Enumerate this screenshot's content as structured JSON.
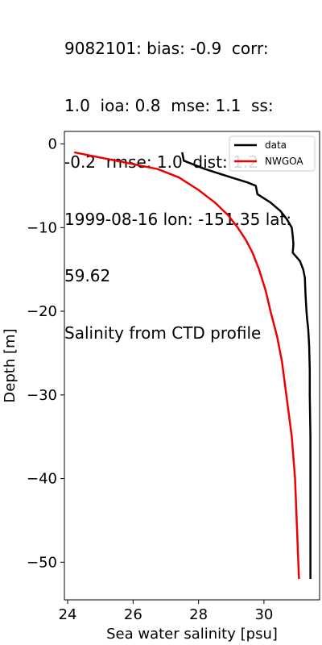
{
  "title_lines": [
    "9082101: bias: -0.9  corr:",
    "1.0  ioa: 0.8  mse: 1.1  ss:",
    "-0.2  rmse: 1.0  dist: 1.2",
    "1999-08-16 lon: -151.35 lat:",
    "59.62",
    "Salinity from CTD profile"
  ],
  "chart_data": {
    "type": "line",
    "title": "9082101: bias: -0.9  corr: 1.0  ioa: 0.8  mse: 1.1  ss: -0.2  rmse: 1.0  dist: 1.2 1999-08-16 lon: -151.35 lat: 59.62 Salinity from CTD profile",
    "xlabel": "Sea water salinity [psu]",
    "ylabel": "Depth [m]",
    "xlim": [
      23.9,
      31.7
    ],
    "ylim": [
      -54.5,
      1.5
    ],
    "xticks": [
      24,
      26,
      28,
      30
    ],
    "xtick_labels": [
      "24",
      "26",
      "28",
      "30"
    ],
    "yticks": [
      0,
      -10,
      -20,
      -30,
      -40,
      -50
    ],
    "ytick_labels": [
      "0",
      "−10",
      "−20",
      "−30",
      "−40",
      "−50"
    ],
    "grid": false,
    "legend": "top-right",
    "series": [
      {
        "name": "data",
        "color": "#000000",
        "points": [
          [
            27.5,
            -1
          ],
          [
            27.55,
            -2
          ],
          [
            28.2,
            -3
          ],
          [
            29.0,
            -4
          ],
          [
            29.5,
            -4.6
          ],
          [
            29.75,
            -5
          ],
          [
            29.8,
            -6
          ],
          [
            30.2,
            -7
          ],
          [
            30.5,
            -8
          ],
          [
            30.7,
            -9
          ],
          [
            30.85,
            -10
          ],
          [
            30.88,
            -11
          ],
          [
            30.9,
            -12
          ],
          [
            30.88,
            -13
          ],
          [
            31.1,
            -14
          ],
          [
            31.2,
            -15
          ],
          [
            31.25,
            -16
          ],
          [
            31.27,
            -18
          ],
          [
            31.3,
            -20
          ],
          [
            31.32,
            -21
          ],
          [
            31.35,
            -22
          ],
          [
            31.38,
            -24
          ],
          [
            31.4,
            -27
          ],
          [
            31.4,
            -30
          ],
          [
            31.42,
            -35
          ],
          [
            31.42,
            -40
          ],
          [
            31.42,
            -45
          ],
          [
            31.42,
            -50
          ],
          [
            31.42,
            -52
          ]
        ]
      },
      {
        "name": "NWGOA",
        "color": "#ee0000",
        "points": [
          [
            24.2,
            -1
          ],
          [
            26.75,
            -3
          ],
          [
            27.4,
            -4
          ],
          [
            28.0,
            -5.5
          ],
          [
            28.5,
            -7
          ],
          [
            28.9,
            -8.5
          ],
          [
            29.2,
            -10
          ],
          [
            29.45,
            -11.5
          ],
          [
            29.65,
            -13
          ],
          [
            29.85,
            -15
          ],
          [
            30.05,
            -17.5
          ],
          [
            30.2,
            -20
          ],
          [
            30.4,
            -23
          ],
          [
            30.55,
            -26
          ],
          [
            30.65,
            -29
          ],
          [
            30.75,
            -32
          ],
          [
            30.85,
            -35
          ],
          [
            30.95,
            -40
          ],
          [
            31.0,
            -45
          ],
          [
            31.05,
            -50
          ],
          [
            31.07,
            -52
          ]
        ]
      }
    ]
  }
}
